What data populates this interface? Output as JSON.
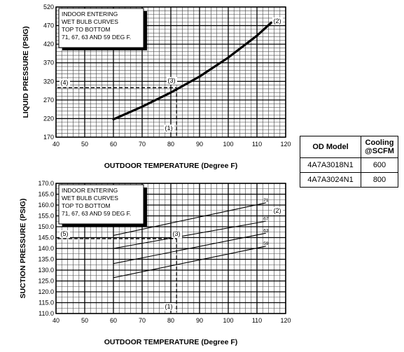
{
  "chart_data": [
    {
      "type": "line",
      "title": "",
      "xlabel": "OUTDOOR TEMPERATURE (Degree F)",
      "ylabel": "LIQUID PRESSURE (PSIG)",
      "xlim": [
        40,
        120
      ],
      "ylim": [
        170,
        520
      ],
      "x_ticks": [
        "40",
        "50",
        "60",
        "70",
        "80",
        "90",
        "100",
        "110",
        "120"
      ],
      "y_ticks": [
        "170",
        "220",
        "270",
        "320",
        "370",
        "420",
        "470",
        "520"
      ],
      "grid": true,
      "legend_box": [
        "INDOOR ENTERING",
        "WET BULB CURVES",
        "TOP TO BOTTOM",
        "71, 67, 63 AND 59 DEG F."
      ],
      "series": [
        {
          "x": [
            60,
            70,
            80,
            90,
            100,
            110,
            115
          ],
          "y": [
            218,
            252,
            290,
            333,
            384,
            443,
            478
          ]
        }
      ],
      "reference": {
        "x": 82,
        "y": 303
      },
      "markers": [
        "(1)",
        "(2)",
        "(3)",
        "(4)"
      ]
    },
    {
      "type": "line",
      "title": "",
      "xlabel": "OUTDOOR TEMPERATURE (Degree F)",
      "ylabel": "SUCTION PRESSURE (PSIG)",
      "xlim": [
        40,
        120
      ],
      "ylim": [
        110,
        170
      ],
      "x_ticks": [
        "40",
        "50",
        "60",
        "70",
        "80",
        "90",
        "100",
        "110",
        "120"
      ],
      "y_ticks": [
        "110.0",
        "115.0",
        "120.0",
        "125.0",
        "130.0",
        "135.0",
        "140.0",
        "145.0",
        "150.0",
        "155.0",
        "160.0",
        "165.0",
        "170.0"
      ],
      "grid": true,
      "legend_box": [
        "INDOOR ENTERING",
        "WET BULB CURVES",
        "TOP TO BOTTOM",
        "71, 67, 63 AND 59 DEG F."
      ],
      "series": [
        {
          "label": "71",
          "x": [
            60,
            113
          ],
          "y": [
            146.0,
            161.0
          ]
        },
        {
          "label": "67",
          "x": [
            60,
            113
          ],
          "y": [
            140.0,
            152.5
          ]
        },
        {
          "label": "63",
          "x": [
            60,
            113
          ],
          "y": [
            133.0,
            147.0
          ]
        },
        {
          "label": "59",
          "x": [
            60,
            113
          ],
          "y": [
            126.5,
            141.0
          ]
        }
      ],
      "reference": {
        "x": 82,
        "y": 144.5
      },
      "markers": [
        "(1)",
        "(2)",
        "(3)",
        "(5)"
      ]
    }
  ],
  "table": {
    "headers": [
      "OD Model",
      "Cooling\n@SCFM"
    ],
    "rows": [
      [
        "4A7A3018N1",
        "600"
      ],
      [
        "4A7A3024N1",
        "800"
      ]
    ]
  }
}
